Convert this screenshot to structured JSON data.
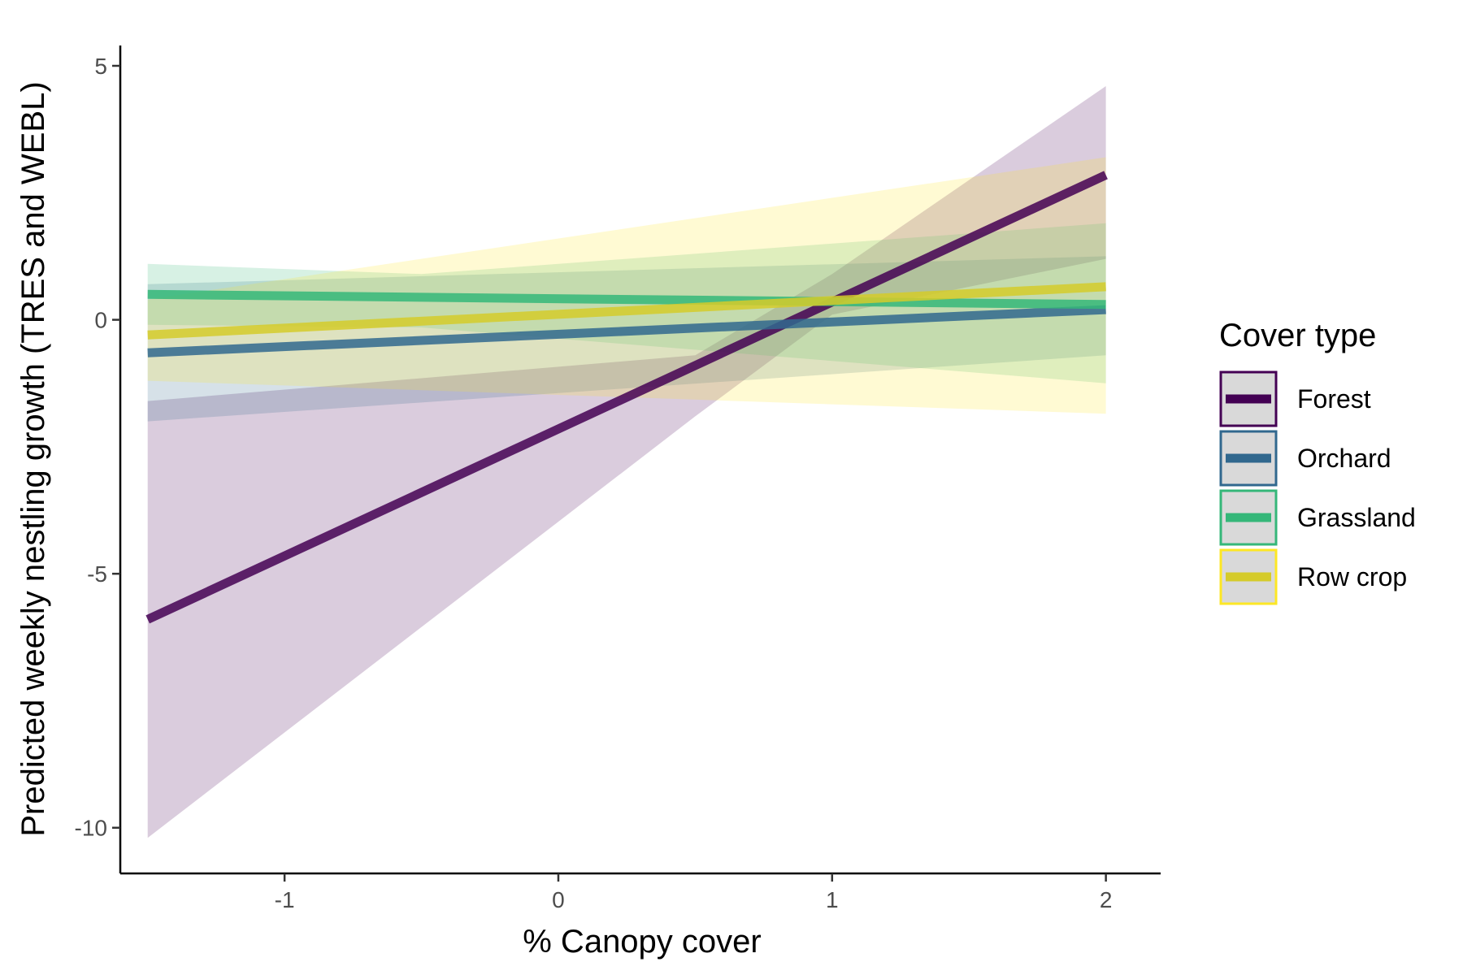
{
  "chart_data": {
    "type": "line",
    "title": "",
    "xlabel": "% Canopy cover",
    "ylabel": "Predicted weekly nestling growth (TRES and WEBL)",
    "xlim": [
      -1.6,
      2.2
    ],
    "ylim": [
      -10.9,
      5.4
    ],
    "x_ticks": [
      {
        "value": -1,
        "label": "-1"
      },
      {
        "value": 0,
        "label": "0"
      },
      {
        "value": 1,
        "label": "1"
      },
      {
        "value": 2,
        "label": "2"
      }
    ],
    "y_ticks": [
      {
        "value": 5,
        "label": "5"
      },
      {
        "value": 0,
        "label": "0"
      },
      {
        "value": -5,
        "label": "-5"
      },
      {
        "value": -10,
        "label": "-10"
      }
    ],
    "grid": false,
    "legend": {
      "title": "Cover type",
      "placement": "right"
    },
    "series": [
      {
        "name": "Forest",
        "color": "#440154",
        "x": [
          -1.5,
          2.0
        ],
        "y": [
          -5.9,
          2.85
        ],
        "ribbon": {
          "x": [
            -1.5,
            0.5,
            1.0,
            2.0
          ],
          "lower": [
            -10.2,
            -1.9,
            0.1,
            1.2
          ],
          "upper": [
            -1.6,
            -0.7,
            0.9,
            4.6
          ]
        }
      },
      {
        "name": "Orchard",
        "color": "#31688E",
        "x": [
          -1.5,
          2.0
        ],
        "y": [
          -0.65,
          0.2
        ],
        "ribbon": {
          "x": [
            -1.5,
            2.0
          ],
          "lower": [
            -2.0,
            -0.7
          ],
          "upper": [
            0.7,
            1.25
          ]
        }
      },
      {
        "name": "Grassland",
        "color": "#35B779",
        "x": [
          -1.5,
          2.0
        ],
        "y": [
          0.5,
          0.3
        ],
        "ribbon": {
          "x": [
            -1.5,
            -0.5,
            2.0
          ],
          "lower": [
            -0.1,
            -0.15,
            -1.25
          ],
          "upper": [
            1.1,
            0.9,
            1.9
          ]
        }
      },
      {
        "name": "Row crop",
        "color": "#D5CB2A",
        "x": [
          -1.5,
          2.0
        ],
        "y": [
          -0.3,
          0.65
        ],
        "ribbon": {
          "x": [
            -1.5,
            2.0
          ],
          "lower": [
            -1.2,
            -1.85
          ],
          "upper": [
            0.4,
            3.2
          ]
        }
      }
    ]
  },
  "legend_colors": {
    "Forest": "#440154",
    "Orchard": "#31688E",
    "Grassland": "#35B779",
    "Row crop": "#FDE725"
  }
}
